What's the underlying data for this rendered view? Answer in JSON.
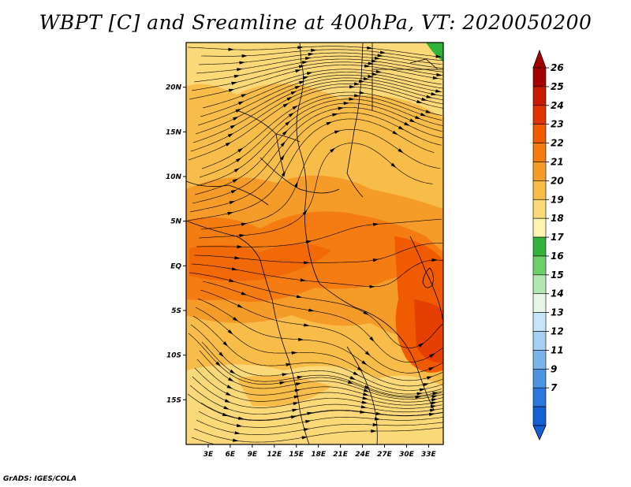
{
  "title": "WBPT [C] and Sreamline at 400hPa, VT: 2020050200",
  "credit": "GrADS: IGES/COLA",
  "map": {
    "field": "WBPT",
    "units": "C",
    "level": "400hPa",
    "valid_time": "2020050200",
    "lon_range": [
      0,
      35
    ],
    "lat_range": [
      -20,
      25
    ],
    "lon_ticks": [
      "3E",
      "6E",
      "9E",
      "12E",
      "15E",
      "18E",
      "21E",
      "24E",
      "27E",
      "30E",
      "33E"
    ],
    "lat_ticks": [
      "20N",
      "15N",
      "10N",
      "5N",
      "EQ",
      "5S",
      "10S",
      "15S"
    ]
  },
  "colorbar": {
    "labels": [
      "26",
      "25",
      "24",
      "23",
      "22",
      "21",
      "20",
      "19",
      "18",
      "17",
      "16",
      "15",
      "14",
      "13",
      "12",
      "11",
      "9",
      "7"
    ],
    "colors": [
      "#a50000",
      "#c81a00",
      "#e03400",
      "#f05a00",
      "#f47c10",
      "#f59c28",
      "#f8bc48",
      "#fbd878",
      "#fdf4b0",
      "#31b23a",
      "#6ccf6c",
      "#b3e6b0",
      "#e6f5e6",
      "#c8e4f8",
      "#a6d0f2",
      "#7ab4ea",
      "#4a94e2",
      "#2a78dc",
      "#1460d4"
    ]
  }
}
